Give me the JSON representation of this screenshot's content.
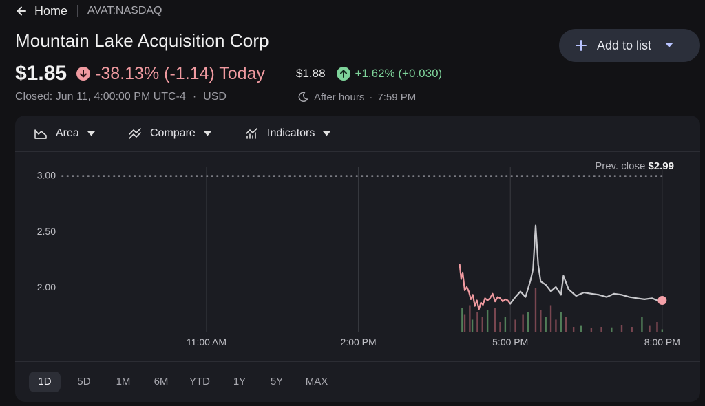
{
  "nav": {
    "home_label": "Home",
    "ticker": "AVAT:NASDAQ"
  },
  "stock": {
    "name": "Mountain Lake Acquisition Corp",
    "price": "$1.85",
    "change_today": "-38.13% (-1.14) Today",
    "closed_text": "Closed: Jun 11, 4:00:00 PM UTC-4",
    "currency": "USD",
    "after_hours_price": "$1.88",
    "after_hours_change": "+1.62% (+0.030)",
    "after_hours_label": "After hours",
    "after_hours_time": "7:59 PM"
  },
  "actions": {
    "add_to_list_label": "Add to list"
  },
  "toolbar": {
    "area_label": "Area",
    "compare_label": "Compare",
    "indicators_label": "Indicators"
  },
  "ranges": [
    "1D",
    "5D",
    "1M",
    "6M",
    "YTD",
    "1Y",
    "5Y",
    "MAX"
  ],
  "active_range": "1D",
  "colors": {
    "negative": "#f09aa0",
    "positive": "#7ed39a",
    "price_line": "#c8c8cc",
    "background": "#121215"
  },
  "icons": {
    "back": "arrow-left-icon",
    "down": "arrow-down-circle-icon",
    "up": "arrow-up-circle-icon",
    "moon": "moon-icon",
    "plus": "plus-icon"
  },
  "chart_data": {
    "type": "line",
    "prev_close_label": "Prev. close",
    "prev_close_value": "$2.99",
    "prev_close": 2.99,
    "y_ticks": [
      {
        "value": 3.0,
        "label": "3.00"
      },
      {
        "value": 2.5,
        "label": "2.50"
      },
      {
        "value": 2.0,
        "label": "2.00"
      }
    ],
    "ylim": [
      1.6,
      3.2
    ],
    "x_ticks": [
      {
        "value": 11,
        "label": "11:00 AM"
      },
      {
        "value": 14,
        "label": "2:00 PM"
      },
      {
        "value": 17,
        "label": "5:00 PM"
      },
      {
        "value": 20,
        "label": "8:00 PM"
      }
    ],
    "xlim": [
      7.22,
      20.75
    ],
    "series": [
      {
        "session": "regular",
        "color": "#f09aa0",
        "points": [
          [
            16.0,
            2.2
          ],
          [
            16.03,
            2.07
          ],
          [
            16.06,
            2.13
          ],
          [
            16.1,
            1.97
          ],
          [
            16.14,
            2.0
          ],
          [
            16.18,
            1.96
          ],
          [
            16.22,
            1.89
          ],
          [
            16.26,
            1.93
          ],
          [
            16.3,
            1.83
          ],
          [
            16.34,
            1.88
          ],
          [
            16.38,
            1.8
          ],
          [
            16.42,
            1.86
          ],
          [
            16.46,
            1.84
          ],
          [
            16.5,
            1.9
          ],
          [
            16.55,
            1.88
          ],
          [
            16.6,
            1.9
          ],
          [
            16.65,
            1.94
          ],
          [
            16.7,
            1.87
          ],
          [
            16.75,
            1.91
          ],
          [
            16.8,
            1.9
          ],
          [
            16.85,
            1.87
          ],
          [
            16.9,
            1.89
          ],
          [
            16.95,
            1.88
          ],
          [
            17.0,
            1.85
          ]
        ]
      },
      {
        "session": "after_hours",
        "color": "#c8c8cc",
        "points": [
          [
            17.0,
            1.85
          ],
          [
            17.1,
            1.91
          ],
          [
            17.2,
            1.96
          ],
          [
            17.3,
            1.91
          ],
          [
            17.4,
            2.06
          ],
          [
            17.45,
            2.16
          ],
          [
            17.5,
            2.55
          ],
          [
            17.55,
            2.2
          ],
          [
            17.6,
            2.05
          ],
          [
            17.7,
            2.02
          ],
          [
            17.8,
            1.96
          ],
          [
            17.9,
            2.0
          ],
          [
            18.0,
            1.93
          ],
          [
            18.05,
            2.1
          ],
          [
            18.15,
            1.98
          ],
          [
            18.3,
            1.92
          ],
          [
            18.45,
            1.95
          ],
          [
            18.6,
            1.94
          ],
          [
            18.75,
            1.93
          ],
          [
            18.9,
            1.91
          ],
          [
            19.05,
            1.94
          ],
          [
            19.2,
            1.93
          ],
          [
            19.35,
            1.91
          ],
          [
            19.5,
            1.9
          ],
          [
            19.65,
            1.89
          ],
          [
            19.8,
            1.9
          ],
          [
            19.9,
            1.88
          ],
          [
            20.0,
            1.88
          ]
        ]
      }
    ],
    "volume": [
      [
        16.05,
        0.5
      ],
      [
        16.1,
        0.35
      ],
      [
        16.2,
        0.55
      ],
      [
        16.25,
        0.25
      ],
      [
        16.35,
        0.4
      ],
      [
        16.45,
        0.3
      ],
      [
        16.55,
        0.45
      ],
      [
        16.7,
        0.5
      ],
      [
        16.8,
        0.2
      ],
      [
        16.9,
        0.3
      ],
      [
        17.1,
        0.25
      ],
      [
        17.25,
        0.35
      ],
      [
        17.35,
        0.4
      ],
      [
        17.5,
        0.9
      ],
      [
        17.6,
        0.45
      ],
      [
        17.7,
        0.3
      ],
      [
        17.8,
        0.55
      ],
      [
        17.9,
        0.25
      ],
      [
        18.0,
        0.4
      ],
      [
        18.1,
        0.3
      ],
      [
        18.25,
        0.1
      ],
      [
        18.4,
        0.12
      ],
      [
        18.6,
        0.08
      ],
      [
        18.8,
        0.1
      ],
      [
        19.0,
        0.09
      ],
      [
        19.2,
        0.14
      ],
      [
        19.4,
        0.1
      ],
      [
        19.6,
        0.3
      ],
      [
        19.75,
        0.12
      ],
      [
        19.9,
        0.2
      ],
      [
        20.0,
        0.05
      ]
    ]
  }
}
